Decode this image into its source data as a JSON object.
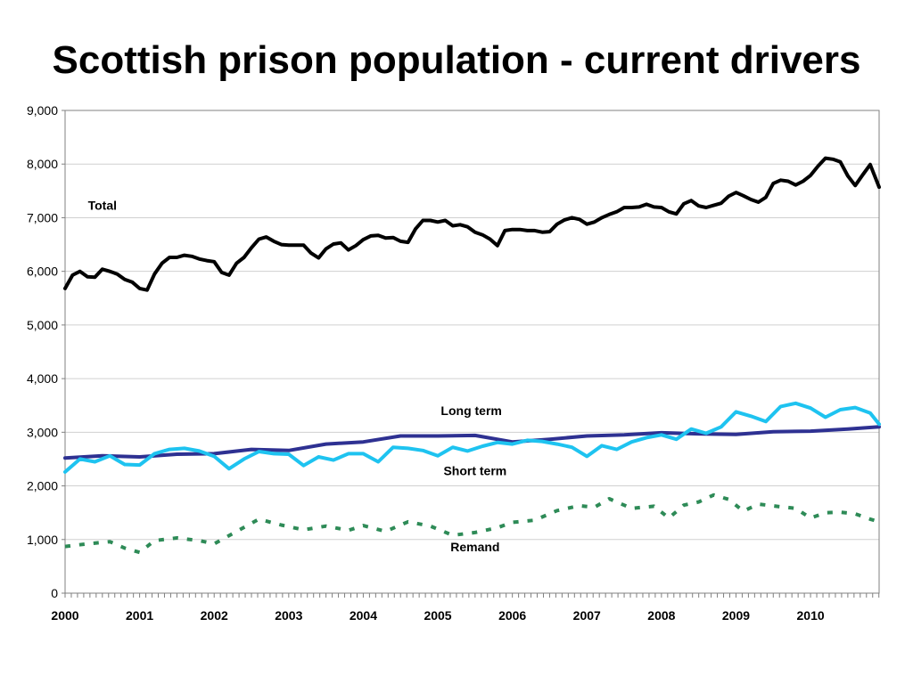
{
  "slide": {
    "title": "Scottish prison population - current drivers"
  },
  "chart_data": {
    "type": "line",
    "title": "Scottish prison population - current drivers",
    "xlabel": "",
    "ylabel": "",
    "xlim": [
      2000,
      2010.92
    ],
    "ylim": [
      0,
      9000
    ],
    "y_ticks": [
      0,
      1000,
      2000,
      3000,
      4000,
      5000,
      6000,
      7000,
      8000,
      9000
    ],
    "y_tick_labels": [
      "0",
      "1,000",
      "2,000",
      "3,000",
      "4,000",
      "5,000",
      "6,000",
      "7,000",
      "8,000",
      "9,000"
    ],
    "x_ticks": [
      2000,
      2001,
      2002,
      2003,
      2004,
      2005,
      2006,
      2007,
      2008,
      2009,
      2010
    ],
    "x_tick_labels": [
      "2000",
      "2001",
      "2002",
      "2003",
      "2004",
      "2005",
      "2006",
      "2007",
      "2008",
      "2009",
      "2010"
    ],
    "grid": "horizontal",
    "legend": "inline labels",
    "series": [
      {
        "name": "Total",
        "color": "#000000",
        "style": "solid",
        "label_at": [
          2000.5,
          7150
        ],
        "points": [
          [
            2000.0,
            5680
          ],
          [
            2000.1,
            5930
          ],
          [
            2000.2,
            6000
          ],
          [
            2000.3,
            5900
          ],
          [
            2000.4,
            5890
          ],
          [
            2000.5,
            6040
          ],
          [
            2000.6,
            6000
          ],
          [
            2000.7,
            5950
          ],
          [
            2000.8,
            5850
          ],
          [
            2000.9,
            5800
          ],
          [
            2001.0,
            5680
          ],
          [
            2001.1,
            5650
          ],
          [
            2001.2,
            5950
          ],
          [
            2001.3,
            6150
          ],
          [
            2001.4,
            6260
          ],
          [
            2001.5,
            6260
          ],
          [
            2001.6,
            6300
          ],
          [
            2001.7,
            6280
          ],
          [
            2001.8,
            6230
          ],
          [
            2001.9,
            6200
          ],
          [
            2002.0,
            6180
          ],
          [
            2002.1,
            5980
          ],
          [
            2002.2,
            5930
          ],
          [
            2002.3,
            6150
          ],
          [
            2002.4,
            6260
          ],
          [
            2002.5,
            6440
          ],
          [
            2002.6,
            6600
          ],
          [
            2002.7,
            6640
          ],
          [
            2002.8,
            6560
          ],
          [
            2002.9,
            6500
          ],
          [
            2003.0,
            6490
          ],
          [
            2003.1,
            6490
          ],
          [
            2003.2,
            6490
          ],
          [
            2003.3,
            6340
          ],
          [
            2003.4,
            6250
          ],
          [
            2003.5,
            6420
          ],
          [
            2003.6,
            6510
          ],
          [
            2003.7,
            6530
          ],
          [
            2003.8,
            6400
          ],
          [
            2003.9,
            6480
          ],
          [
            2004.0,
            6590
          ],
          [
            2004.1,
            6660
          ],
          [
            2004.2,
            6670
          ],
          [
            2004.3,
            6620
          ],
          [
            2004.4,
            6630
          ],
          [
            2004.5,
            6560
          ],
          [
            2004.6,
            6540
          ],
          [
            2004.7,
            6790
          ],
          [
            2004.8,
            6950
          ],
          [
            2004.9,
            6950
          ],
          [
            2005.0,
            6920
          ],
          [
            2005.1,
            6950
          ],
          [
            2005.2,
            6850
          ],
          [
            2005.3,
            6870
          ],
          [
            2005.4,
            6830
          ],
          [
            2005.5,
            6730
          ],
          [
            2005.6,
            6680
          ],
          [
            2005.7,
            6600
          ],
          [
            2005.8,
            6480
          ],
          [
            2005.9,
            6760
          ],
          [
            2006.0,
            6780
          ],
          [
            2006.1,
            6780
          ],
          [
            2006.2,
            6760
          ],
          [
            2006.3,
            6760
          ],
          [
            2006.4,
            6730
          ],
          [
            2006.5,
            6740
          ],
          [
            2006.6,
            6880
          ],
          [
            2006.7,
            6960
          ],
          [
            2006.8,
            7000
          ],
          [
            2006.9,
            6970
          ],
          [
            2007.0,
            6880
          ],
          [
            2007.1,
            6920
          ],
          [
            2007.2,
            7000
          ],
          [
            2007.3,
            7060
          ],
          [
            2007.4,
            7110
          ],
          [
            2007.5,
            7190
          ],
          [
            2007.6,
            7190
          ],
          [
            2007.7,
            7200
          ],
          [
            2007.8,
            7250
          ],
          [
            2007.9,
            7200
          ],
          [
            2008.0,
            7190
          ],
          [
            2008.1,
            7110
          ],
          [
            2008.2,
            7070
          ],
          [
            2008.3,
            7260
          ],
          [
            2008.4,
            7320
          ],
          [
            2008.5,
            7220
          ],
          [
            2008.6,
            7190
          ],
          [
            2008.7,
            7230
          ],
          [
            2008.8,
            7270
          ],
          [
            2008.9,
            7400
          ],
          [
            2009.0,
            7470
          ],
          [
            2009.1,
            7410
          ],
          [
            2009.2,
            7340
          ],
          [
            2009.3,
            7290
          ],
          [
            2009.4,
            7380
          ],
          [
            2009.5,
            7640
          ],
          [
            2009.6,
            7700
          ],
          [
            2009.7,
            7680
          ],
          [
            2009.8,
            7610
          ],
          [
            2009.9,
            7680
          ],
          [
            2010.0,
            7790
          ],
          [
            2010.1,
            7960
          ],
          [
            2010.2,
            8110
          ],
          [
            2010.3,
            8090
          ],
          [
            2010.4,
            8040
          ],
          [
            2010.5,
            7780
          ],
          [
            2010.6,
            7600
          ],
          [
            2010.7,
            7800
          ],
          [
            2010.8,
            7990
          ],
          [
            2010.92,
            7570
          ]
        ]
      },
      {
        "name": "Long term",
        "color": "#2e3192",
        "style": "solid",
        "label_at": [
          2005.45,
          3320
        ],
        "points": [
          [
            2000.0,
            2520
          ],
          [
            2000.5,
            2560
          ],
          [
            2001.0,
            2540
          ],
          [
            2001.5,
            2590
          ],
          [
            2002.0,
            2600
          ],
          [
            2002.5,
            2680
          ],
          [
            2003.0,
            2660
          ],
          [
            2003.5,
            2780
          ],
          [
            2004.0,
            2820
          ],
          [
            2004.5,
            2930
          ],
          [
            2005.0,
            2930
          ],
          [
            2005.5,
            2940
          ],
          [
            2006.0,
            2820
          ],
          [
            2006.5,
            2870
          ],
          [
            2007.0,
            2930
          ],
          [
            2007.5,
            2950
          ],
          [
            2008.0,
            2990
          ],
          [
            2008.5,
            2970
          ],
          [
            2009.0,
            2960
          ],
          [
            2009.5,
            3010
          ],
          [
            2010.0,
            3020
          ],
          [
            2010.5,
            3060
          ],
          [
            2010.92,
            3100
          ]
        ]
      },
      {
        "name": "Short term",
        "color": "#1ec3f0",
        "style": "solid",
        "label_at": [
          2005.5,
          2200
        ],
        "points": [
          [
            2000.0,
            2260
          ],
          [
            2000.2,
            2500
          ],
          [
            2000.4,
            2450
          ],
          [
            2000.6,
            2560
          ],
          [
            2000.8,
            2400
          ],
          [
            2001.0,
            2390
          ],
          [
            2001.2,
            2600
          ],
          [
            2001.4,
            2680
          ],
          [
            2001.6,
            2700
          ],
          [
            2001.8,
            2650
          ],
          [
            2002.0,
            2550
          ],
          [
            2002.2,
            2320
          ],
          [
            2002.4,
            2500
          ],
          [
            2002.6,
            2640
          ],
          [
            2002.8,
            2600
          ],
          [
            2003.0,
            2590
          ],
          [
            2003.2,
            2380
          ],
          [
            2003.4,
            2540
          ],
          [
            2003.6,
            2480
          ],
          [
            2003.8,
            2600
          ],
          [
            2004.0,
            2600
          ],
          [
            2004.2,
            2450
          ],
          [
            2004.4,
            2720
          ],
          [
            2004.6,
            2700
          ],
          [
            2004.8,
            2660
          ],
          [
            2005.0,
            2560
          ],
          [
            2005.2,
            2720
          ],
          [
            2005.4,
            2650
          ],
          [
            2005.6,
            2740
          ],
          [
            2005.8,
            2810
          ],
          [
            2006.0,
            2780
          ],
          [
            2006.2,
            2850
          ],
          [
            2006.4,
            2830
          ],
          [
            2006.6,
            2780
          ],
          [
            2006.8,
            2720
          ],
          [
            2007.0,
            2550
          ],
          [
            2007.2,
            2750
          ],
          [
            2007.4,
            2680
          ],
          [
            2007.6,
            2820
          ],
          [
            2007.8,
            2900
          ],
          [
            2008.0,
            2950
          ],
          [
            2008.2,
            2870
          ],
          [
            2008.4,
            3060
          ],
          [
            2008.6,
            2980
          ],
          [
            2008.8,
            3100
          ],
          [
            2009.0,
            3380
          ],
          [
            2009.2,
            3300
          ],
          [
            2009.4,
            3200
          ],
          [
            2009.6,
            3480
          ],
          [
            2009.8,
            3540
          ],
          [
            2010.0,
            3450
          ],
          [
            2010.2,
            3280
          ],
          [
            2010.4,
            3420
          ],
          [
            2010.6,
            3460
          ],
          [
            2010.8,
            3360
          ],
          [
            2010.92,
            3150
          ]
        ]
      },
      {
        "name": "Remand",
        "color": "#2e8b57",
        "style": "dotted",
        "label_at": [
          2005.5,
          780
        ],
        "points": [
          [
            2000.0,
            870
          ],
          [
            2000.3,
            920
          ],
          [
            2000.6,
            960
          ],
          [
            2000.8,
            840
          ],
          [
            2001.0,
            760
          ],
          [
            2001.2,
            980
          ],
          [
            2001.5,
            1030
          ],
          [
            2001.8,
            980
          ],
          [
            2002.0,
            920
          ],
          [
            2002.3,
            1150
          ],
          [
            2002.6,
            1380
          ],
          [
            2002.9,
            1270
          ],
          [
            2003.2,
            1180
          ],
          [
            2003.5,
            1250
          ],
          [
            2003.8,
            1170
          ],
          [
            2004.0,
            1260
          ],
          [
            2004.3,
            1150
          ],
          [
            2004.6,
            1330
          ],
          [
            2004.9,
            1250
          ],
          [
            2005.2,
            1080
          ],
          [
            2005.5,
            1130
          ],
          [
            2005.8,
            1220
          ],
          [
            2006.0,
            1320
          ],
          [
            2006.3,
            1360
          ],
          [
            2006.6,
            1540
          ],
          [
            2006.9,
            1630
          ],
          [
            2007.1,
            1600
          ],
          [
            2007.3,
            1760
          ],
          [
            2007.6,
            1580
          ],
          [
            2007.9,
            1620
          ],
          [
            2008.1,
            1400
          ],
          [
            2008.3,
            1640
          ],
          [
            2008.5,
            1700
          ],
          [
            2008.7,
            1830
          ],
          [
            2008.9,
            1750
          ],
          [
            2009.1,
            1530
          ],
          [
            2009.3,
            1660
          ],
          [
            2009.6,
            1610
          ],
          [
            2009.8,
            1580
          ],
          [
            2010.0,
            1400
          ],
          [
            2010.2,
            1500
          ],
          [
            2010.4,
            1510
          ],
          [
            2010.6,
            1480
          ],
          [
            2010.8,
            1380
          ],
          [
            2010.92,
            1330
          ]
        ]
      }
    ]
  }
}
